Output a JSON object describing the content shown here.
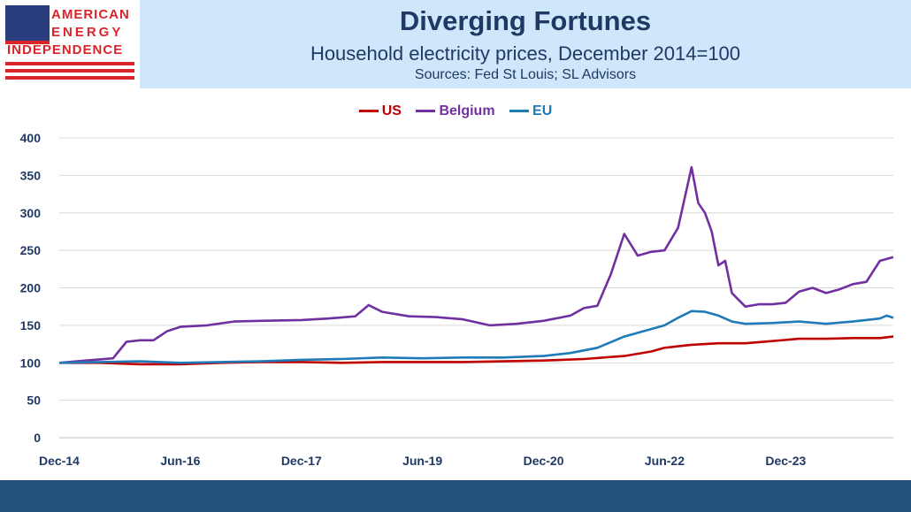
{
  "header": {
    "title": "Diverging Fortunes",
    "subtitle": "Household electricity prices, December 2014=100",
    "sources": "Sources: Fed St Louis; SL Advisors"
  },
  "logo": {
    "line1": "AMERICAN",
    "line2": "ENERGY",
    "line3": "INDEPENDENCE",
    "icon": "us-flag-icon"
  },
  "colors": {
    "US": "#c00000",
    "Belgium": "#7030a0",
    "EU": "#1f7ab8",
    "header_bg": "#cfe7fa",
    "title_text": "#1f3864",
    "footer": "#23507c"
  },
  "chart_data": {
    "type": "line",
    "title": "",
    "xlabel": "",
    "ylabel": "",
    "ylim": [
      0,
      400
    ],
    "yticks": [
      0,
      50,
      100,
      150,
      200,
      250,
      300,
      350,
      400
    ],
    "xlim": [
      0,
      124
    ],
    "x_tick_labels": [
      "Dec-14",
      "Jun-16",
      "Dec-17",
      "Jun-19",
      "Dec-20",
      "Jun-22",
      "Dec-23"
    ],
    "x_tick_positions": [
      0,
      18,
      36,
      54,
      72,
      90,
      108
    ],
    "grid": true,
    "legend_position": "top",
    "x_unit": "months since Dec-14",
    "series": [
      {
        "name": "US",
        "points": [
          [
            0,
            100
          ],
          [
            6,
            100
          ],
          [
            12,
            98
          ],
          [
            18,
            98
          ],
          [
            24,
            100
          ],
          [
            30,
            101
          ],
          [
            36,
            101
          ],
          [
            42,
            100
          ],
          [
            48,
            101
          ],
          [
            54,
            101
          ],
          [
            60,
            101
          ],
          [
            66,
            102
          ],
          [
            72,
            103
          ],
          [
            78,
            105
          ],
          [
            84,
            109
          ],
          [
            88,
            115
          ],
          [
            90,
            120
          ],
          [
            94,
            124
          ],
          [
            98,
            126
          ],
          [
            102,
            126
          ],
          [
            106,
            129
          ],
          [
            110,
            132
          ],
          [
            114,
            132
          ],
          [
            118,
            133
          ],
          [
            122,
            133
          ],
          [
            124,
            135
          ]
        ]
      },
      {
        "name": "Belgium",
        "points": [
          [
            0,
            100
          ],
          [
            4,
            103
          ],
          [
            8,
            106
          ],
          [
            10,
            128
          ],
          [
            12,
            130
          ],
          [
            14,
            130
          ],
          [
            16,
            142
          ],
          [
            18,
            148
          ],
          [
            22,
            150
          ],
          [
            26,
            155
          ],
          [
            30,
            156
          ],
          [
            36,
            157
          ],
          [
            40,
            159
          ],
          [
            44,
            162
          ],
          [
            46,
            177
          ],
          [
            48,
            168
          ],
          [
            52,
            162
          ],
          [
            56,
            161
          ],
          [
            60,
            158
          ],
          [
            64,
            150
          ],
          [
            68,
            152
          ],
          [
            72,
            156
          ],
          [
            76,
            163
          ],
          [
            78,
            173
          ],
          [
            80,
            176
          ],
          [
            82,
            218
          ],
          [
            84,
            272
          ],
          [
            86,
            243
          ],
          [
            88,
            248
          ],
          [
            90,
            250
          ],
          [
            92,
            280
          ],
          [
            94,
            361
          ],
          [
            95,
            313
          ],
          [
            96,
            300
          ],
          [
            97,
            275
          ],
          [
            98,
            230
          ],
          [
            99,
            236
          ],
          [
            100,
            193
          ],
          [
            102,
            175
          ],
          [
            104,
            178
          ],
          [
            106,
            178
          ],
          [
            108,
            180
          ],
          [
            110,
            195
          ],
          [
            112,
            200
          ],
          [
            114,
            193
          ],
          [
            116,
            198
          ],
          [
            118,
            205
          ],
          [
            120,
            208
          ],
          [
            122,
            236
          ],
          [
            124,
            241
          ]
        ]
      },
      {
        "name": "EU",
        "points": [
          [
            0,
            100
          ],
          [
            6,
            101
          ],
          [
            12,
            102
          ],
          [
            18,
            100
          ],
          [
            24,
            101
          ],
          [
            30,
            102
          ],
          [
            36,
            104
          ],
          [
            42,
            105
          ],
          [
            48,
            107
          ],
          [
            54,
            106
          ],
          [
            60,
            107
          ],
          [
            66,
            107
          ],
          [
            72,
            109
          ],
          [
            76,
            113
          ],
          [
            80,
            120
          ],
          [
            84,
            135
          ],
          [
            88,
            145
          ],
          [
            90,
            150
          ],
          [
            92,
            160
          ],
          [
            94,
            169
          ],
          [
            96,
            168
          ],
          [
            98,
            163
          ],
          [
            100,
            155
          ],
          [
            102,
            152
          ],
          [
            106,
            153
          ],
          [
            110,
            155
          ],
          [
            114,
            152
          ],
          [
            118,
            155
          ],
          [
            122,
            159
          ],
          [
            123,
            163
          ],
          [
            124,
            160
          ]
        ]
      }
    ]
  }
}
